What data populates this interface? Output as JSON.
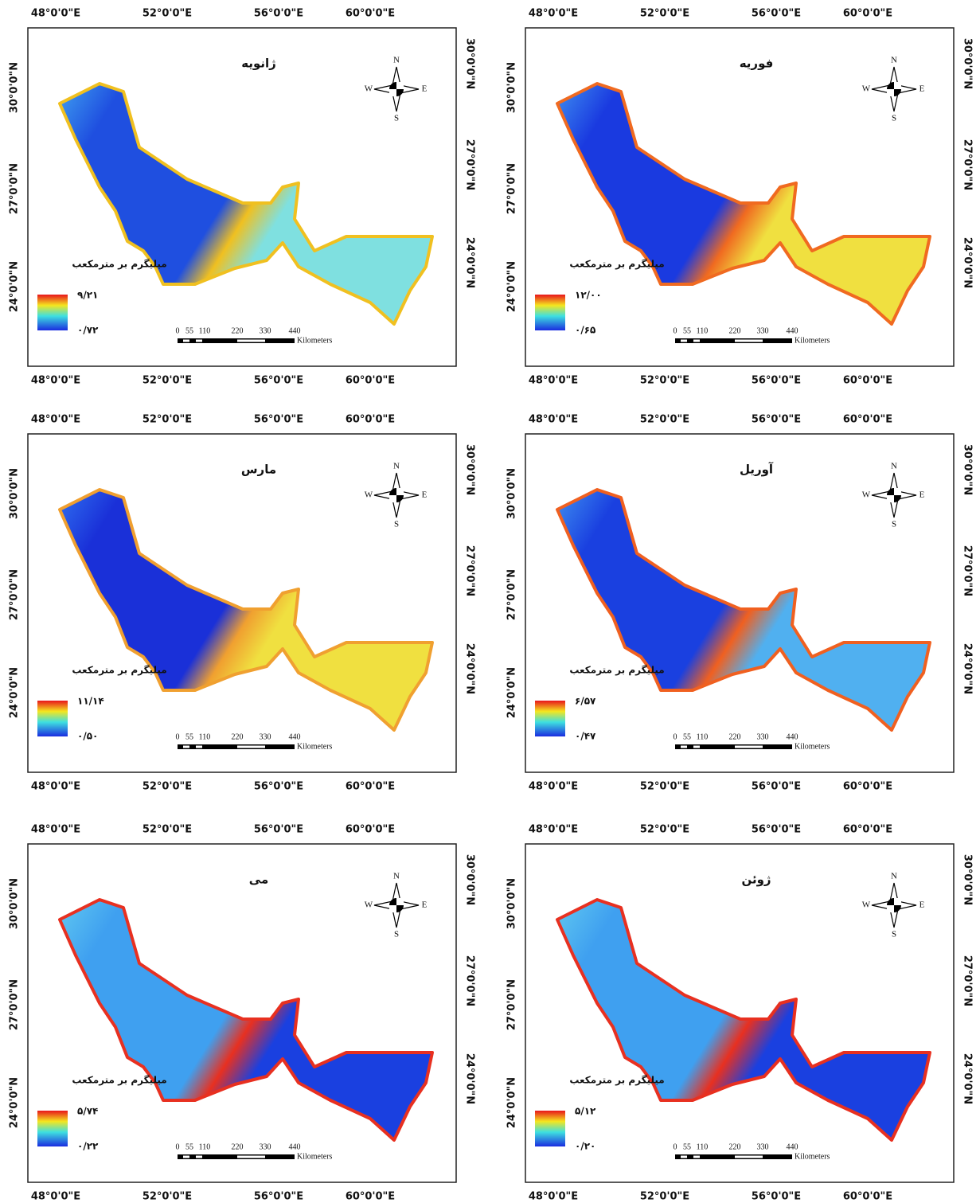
{
  "legend_title": "میلیگرم بر مترمکعب",
  "axes": {
    "lon_labels": [
      "48°0'0\"E",
      "52°0'0\"E",
      "56°0'0\"E",
      "60°0'0\"E"
    ],
    "lat_labels": [
      "30°0'0\"N",
      "27°0'0\"N",
      "24°0'0\"N"
    ]
  },
  "compass": {
    "north": "N",
    "east": "E",
    "south": "S",
    "west": "W"
  },
  "scale_bar": {
    "labels": [
      "0",
      "55",
      "110",
      "220",
      "330",
      "440"
    ],
    "unit": "Kilometers"
  },
  "panels": [
    {
      "title": "ژانویه",
      "legend_max": "۹/۲۱",
      "legend_min": "۰/۷۲"
    },
    {
      "title": "فوریه",
      "legend_max": "۱۲/۰۰",
      "legend_min": "۰/۶۵"
    },
    {
      "title": "مارس",
      "legend_max": "۱۱/۱۴",
      "legend_min": "۰/۵۰"
    },
    {
      "title": "آوریل",
      "legend_max": "۶/۵۷",
      "legend_min": "۰/۴۷"
    },
    {
      "title": "می",
      "legend_max": "۵/۷۴",
      "legend_min": "۰/۲۲"
    },
    {
      "title": "ژوئن",
      "legend_max": "۵/۱۲",
      "legend_min": "۰/۲۰"
    }
  ]
}
